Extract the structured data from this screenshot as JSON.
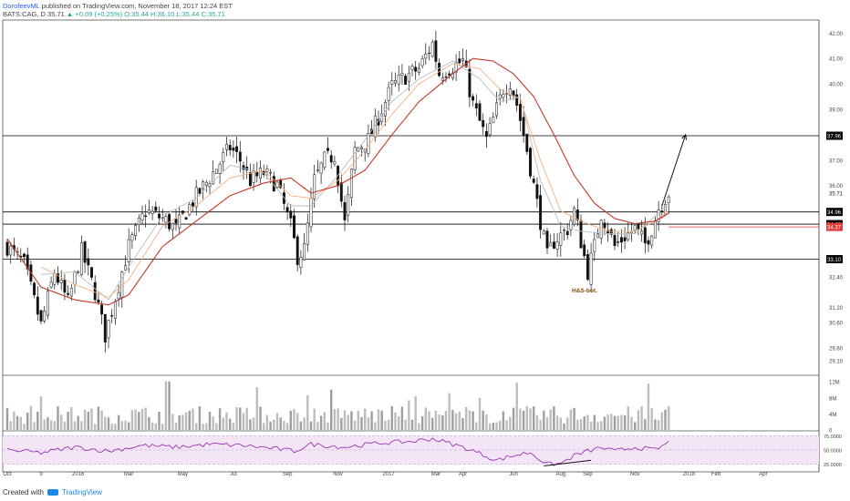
{
  "header": {
    "author": "DorofeevML",
    "published": "published on TradingView.com, November 18, 2017 12:24 EST",
    "symbol": "BATS:CAG, D",
    "price": "35.71",
    "change": "+0.09 (+0.25%)",
    "ohlc": "O:35.44 H:36.10 L:35.44 C:35.71"
  },
  "footer": {
    "created": "Created with",
    "brand": "TradingView"
  },
  "chart_data": {
    "type": "line",
    "subtype": "candlestick",
    "symbol": "BATS:CAG",
    "interval": "D",
    "y_range": [
      28.6,
      42.3
    ],
    "y_ticks": [
      29.1,
      29.6,
      30.6,
      31.2,
      32.4,
      33.1,
      34.48,
      34.96,
      36.0,
      37.0,
      37.96,
      39.0,
      40.0,
      41.0,
      42.0
    ],
    "y_tick_labels": [
      "29.10",
      "29.60",
      "30.60",
      "31.20",
      "32.40",
      "33.10",
      "34.48",
      "34.96",
      "36.00",
      "37.00",
      "37.96",
      "39.00",
      "40.00",
      "41.00",
      "42.00"
    ],
    "x_ticks": [
      {
        "label": "Oct",
        "index": 0
      },
      {
        "label": "9",
        "index": 10
      },
      {
        "label": "2016",
        "index": 21
      },
      {
        "label": "Mar",
        "index": 36
      },
      {
        "label": "May",
        "index": 52
      },
      {
        "label": "Jul",
        "index": 67
      },
      {
        "label": "Sep",
        "index": 83
      },
      {
        "label": "Nov",
        "index": 98
      },
      {
        "label": "2017",
        "index": 113
      },
      {
        "label": "Mar",
        "index": 127
      },
      {
        "label": "Apr",
        "index": 135
      },
      {
        "label": "Jun",
        "index": 150
      },
      {
        "label": "Aug",
        "index": 164
      },
      {
        "label": "Sep",
        "index": 172
      },
      {
        "label": "Nov",
        "index": 186
      },
      {
        "label": "2018",
        "index": 202
      },
      {
        "label": "Feb",
        "index": 210
      },
      {
        "label": "Apr",
        "index": 224
      }
    ],
    "close_keypoints": [
      [
        0,
        33.6
      ],
      [
        5,
        32.9
      ],
      [
        10,
        30.5
      ],
      [
        14,
        32.6
      ],
      [
        18,
        31.4
      ],
      [
        22,
        33.4
      ],
      [
        26,
        31.8
      ],
      [
        29,
        30.1
      ],
      [
        32,
        31.6
      ],
      [
        36,
        33.6
      ],
      [
        41,
        35.0
      ],
      [
        46,
        34.7
      ],
      [
        50,
        34.3
      ],
      [
        55,
        35.4
      ],
      [
        60,
        36.3
      ],
      [
        66,
        37.5
      ],
      [
        69,
        37.0
      ],
      [
        72,
        36.2
      ],
      [
        76,
        36.5
      ],
      [
        80,
        36.0
      ],
      [
        84,
        34.4
      ],
      [
        86,
        33.2
      ],
      [
        88,
        33.5
      ],
      [
        91,
        36.2
      ],
      [
        94,
        37.0
      ],
      [
        97,
        37.2
      ],
      [
        100,
        34.5
      ],
      [
        103,
        37.4
      ],
      [
        107,
        37.8
      ],
      [
        111,
        39.0
      ],
      [
        114,
        39.9
      ],
      [
        118,
        40.3
      ],
      [
        122,
        40.6
      ],
      [
        126,
        41.6
      ],
      [
        128,
        40.4
      ],
      [
        132,
        40.7
      ],
      [
        135,
        40.9
      ],
      [
        138,
        39.2
      ],
      [
        142,
        37.8
      ],
      [
        144,
        38.6
      ],
      [
        147,
        39.8
      ],
      [
        149,
        40.1
      ],
      [
        151,
        39.2
      ],
      [
        154,
        37.4
      ],
      [
        158,
        34.6
      ],
      [
        160,
        33.2
      ],
      [
        162,
        33.8
      ],
      [
        166,
        34.3
      ],
      [
        168,
        35.0
      ],
      [
        170,
        33.8
      ],
      [
        172,
        32.6
      ],
      [
        174,
        33.6
      ],
      [
        176,
        34.9
      ],
      [
        178,
        34.3
      ],
      [
        180,
        33.6
      ],
      [
        183,
        34.0
      ],
      [
        186,
        34.3
      ],
      [
        189,
        33.7
      ],
      [
        191,
        34.3
      ],
      [
        193,
        35.1
      ],
      [
        196,
        35.71
      ]
    ],
    "ma_red_keypoints": [
      [
        0,
        33.9
      ],
      [
        10,
        32.0
      ],
      [
        20,
        31.5
      ],
      [
        30,
        31.3
      ],
      [
        36,
        31.7
      ],
      [
        46,
        33.6
      ],
      [
        56,
        34.6
      ],
      [
        66,
        35.6
      ],
      [
        76,
        36.1
      ],
      [
        84,
        36.3
      ],
      [
        90,
        35.7
      ],
      [
        98,
        36.0
      ],
      [
        106,
        36.6
      ],
      [
        114,
        38.0
      ],
      [
        122,
        39.3
      ],
      [
        132,
        40.4
      ],
      [
        138,
        41.0
      ],
      [
        144,
        40.9
      ],
      [
        150,
        40.4
      ],
      [
        156,
        39.5
      ],
      [
        162,
        38.0
      ],
      [
        168,
        36.4
      ],
      [
        174,
        35.3
      ],
      [
        180,
        34.7
      ],
      [
        186,
        34.5
      ],
      [
        192,
        34.6
      ],
      [
        196,
        34.9
      ]
    ],
    "ma_orange_keypoints": [
      [
        10,
        32.8
      ],
      [
        20,
        32.1
      ],
      [
        30,
        31.6
      ],
      [
        36,
        32.3
      ],
      [
        46,
        34.4
      ],
      [
        56,
        35.2
      ],
      [
        66,
        36.3
      ],
      [
        76,
        36.6
      ],
      [
        84,
        35.6
      ],
      [
        90,
        35.5
      ],
      [
        98,
        36.2
      ],
      [
        106,
        37.4
      ],
      [
        114,
        38.8
      ],
      [
        122,
        40.0
      ],
      [
        132,
        40.8
      ],
      [
        140,
        40.6
      ],
      [
        146,
        39.8
      ],
      [
        152,
        39.4
      ],
      [
        158,
        37.0
      ],
      [
        164,
        35.0
      ],
      [
        170,
        34.6
      ],
      [
        178,
        34.2
      ],
      [
        186,
        34.2
      ],
      [
        192,
        34.6
      ],
      [
        196,
        35.0
      ]
    ],
    "ma_gray_keypoints": [
      [
        10,
        32.5
      ],
      [
        20,
        32.6
      ],
      [
        30,
        31.5
      ],
      [
        36,
        32.8
      ],
      [
        46,
        34.8
      ],
      [
        56,
        35.5
      ],
      [
        66,
        36.8
      ],
      [
        76,
        36.5
      ],
      [
        84,
        35.2
      ],
      [
        90,
        35.2
      ],
      [
        98,
        36.4
      ],
      [
        106,
        37.8
      ],
      [
        114,
        39.3
      ],
      [
        122,
        40.2
      ],
      [
        132,
        40.9
      ],
      [
        140,
        40.2
      ],
      [
        146,
        39.3
      ],
      [
        152,
        39.5
      ],
      [
        158,
        36.2
      ],
      [
        164,
        34.4
      ],
      [
        170,
        34.2
      ],
      [
        178,
        34.1
      ],
      [
        186,
        34.1
      ],
      [
        192,
        34.8
      ],
      [
        196,
        35.3
      ]
    ],
    "horizontal_levels": [
      {
        "value": 37.96,
        "label": "37.96",
        "color": "#000000"
      },
      {
        "value": 34.96,
        "label": "34.96",
        "color": "#000000"
      },
      {
        "value": 34.48,
        "label": "34.48",
        "color": "#000000"
      },
      {
        "value": 33.1,
        "label": "33.10",
        "color": "#000000"
      }
    ],
    "red_level": {
      "value": 34.37,
      "label": "34.37",
      "color": "#e53935",
      "from_index": 196
    },
    "current_price": {
      "value": 35.71,
      "label": "35.71"
    },
    "annotation": {
      "text": "H&S-bot.",
      "index": 170,
      "value": 31.8
    },
    "projection_arrow": {
      "from": [
        194,
        35.2
      ],
      "to": [
        201,
        38.0
      ]
    },
    "volume": {
      "y_ticks": [
        0,
        4,
        8,
        12
      ],
      "y_tick_labels": [
        "0",
        "4M",
        "8M",
        "12M"
      ],
      "units": "M",
      "typical_range": [
        1.5,
        6
      ]
    },
    "rsi": {
      "y_ticks": [
        25,
        50,
        75
      ],
      "y_tick_labels": [
        "25.0000",
        "50.0000",
        "75.0000"
      ],
      "range": [
        18,
        82
      ],
      "keypoints": [
        [
          0,
          50
        ],
        [
          10,
          45
        ],
        [
          20,
          55
        ],
        [
          30,
          48
        ],
        [
          40,
          58
        ],
        [
          50,
          55
        ],
        [
          60,
          60
        ],
        [
          70,
          58
        ],
        [
          80,
          52
        ],
        [
          85,
          48
        ],
        [
          90,
          60
        ],
        [
          100,
          55
        ],
        [
          110,
          62
        ],
        [
          120,
          65
        ],
        [
          126,
          70
        ],
        [
          135,
          55
        ],
        [
          140,
          44
        ],
        [
          145,
          32
        ],
        [
          150,
          40
        ],
        [
          155,
          46
        ],
        [
          158,
          33
        ],
        [
          160,
          25
        ],
        [
          164,
          26
        ],
        [
          168,
          40
        ],
        [
          172,
          48
        ],
        [
          176,
          54
        ],
        [
          180,
          48
        ],
        [
          186,
          55
        ],
        [
          192,
          50
        ],
        [
          196,
          63
        ]
      ]
    },
    "rsi_divergence": {
      "from": [
        159,
        22
      ],
      "to": [
        173,
        32
      ]
    }
  }
}
